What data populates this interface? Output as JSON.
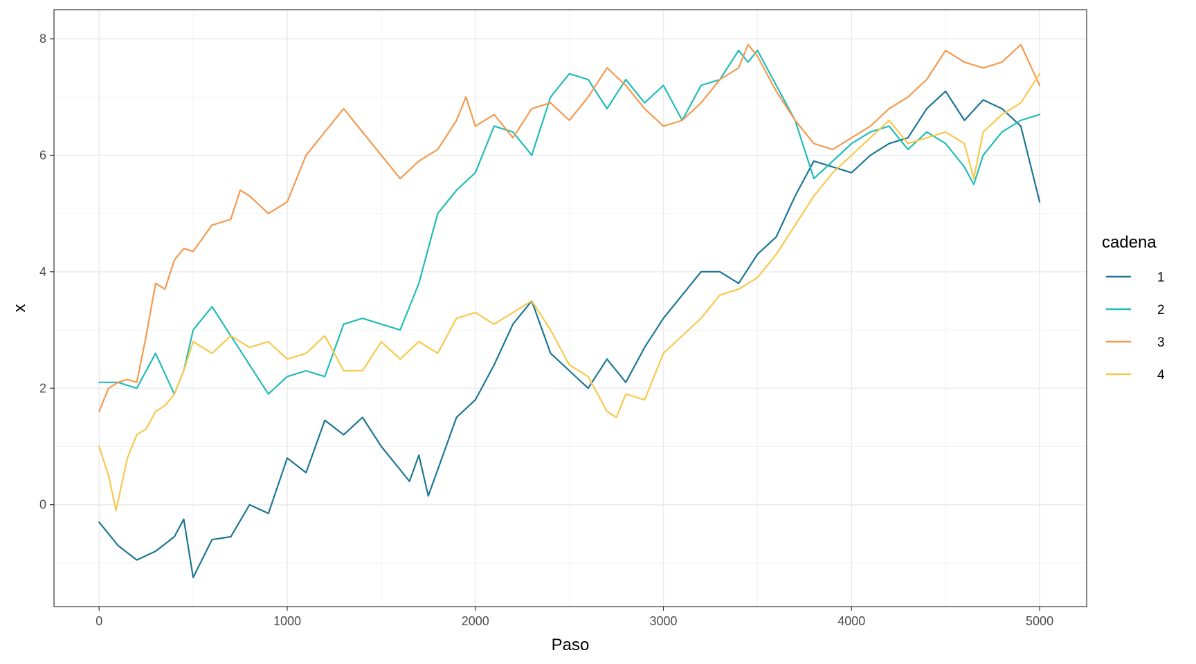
{
  "chart_data": {
    "type": "line",
    "title": "",
    "xlabel": "Paso",
    "ylabel": "x",
    "xlim": [
      -240,
      5250
    ],
    "ylim": [
      -1.75,
      8.5
    ],
    "x_ticks": [
      0,
      1000,
      2000,
      3000,
      4000,
      5000
    ],
    "x_tick_labels": [
      "0",
      "1000",
      "2000",
      "3000",
      "4000",
      "5000"
    ],
    "y_ticks": [
      0,
      2,
      4,
      6,
      8
    ],
    "y_tick_labels": [
      "0",
      "2",
      "4",
      "6",
      "8"
    ],
    "grid": true,
    "legend": {
      "title": "cadena",
      "position": "right"
    },
    "series": [
      {
        "name": "1",
        "color": "#1b7594",
        "x": [
          0,
          100,
          200,
          300,
          400,
          450,
          500,
          600,
          700,
          800,
          900,
          1000,
          1100,
          1200,
          1300,
          1400,
          1500,
          1600,
          1650,
          1700,
          1750,
          1800,
          1900,
          2000,
          2100,
          2200,
          2300,
          2400,
          2500,
          2600,
          2700,
          2800,
          2900,
          3000,
          3100,
          3200,
          3300,
          3400,
          3500,
          3600,
          3700,
          3800,
          3900,
          4000,
          4100,
          4200,
          4300,
          4400,
          4500,
          4600,
          4700,
          4800,
          4900,
          5000
        ],
        "y": [
          -0.3,
          -0.7,
          -0.95,
          -0.8,
          -0.55,
          -0.25,
          -1.25,
          -0.6,
          -0.55,
          0.0,
          -0.15,
          0.8,
          0.55,
          1.45,
          1.2,
          1.5,
          1.0,
          0.6,
          0.4,
          0.85,
          0.15,
          0.6,
          1.5,
          1.8,
          2.4,
          3.1,
          3.5,
          2.6,
          2.3,
          2.0,
          2.5,
          2.1,
          2.7,
          3.2,
          3.6,
          4.0,
          4.0,
          3.8,
          4.3,
          4.6,
          5.3,
          5.9,
          5.8,
          5.7,
          6.0,
          6.2,
          6.3,
          6.8,
          7.1,
          6.6,
          6.95,
          6.8,
          6.5,
          5.2
        ]
      },
      {
        "name": "2",
        "color": "#1fbcb8",
        "x": [
          0,
          100,
          200,
          300,
          400,
          450,
          500,
          600,
          700,
          800,
          900,
          1000,
          1100,
          1200,
          1300,
          1400,
          1500,
          1600,
          1700,
          1800,
          1900,
          2000,
          2100,
          2200,
          2300,
          2400,
          2500,
          2600,
          2700,
          2800,
          2900,
          3000,
          3100,
          3200,
          3300,
          3400,
          3450,
          3500,
          3600,
          3700,
          3800,
          3900,
          4000,
          4100,
          4200,
          4300,
          4400,
          4500,
          4600,
          4650,
          4700,
          4800,
          4900,
          5000
        ],
        "y": [
          2.1,
          2.1,
          2.0,
          2.6,
          1.9,
          2.3,
          3.0,
          3.4,
          2.9,
          2.4,
          1.9,
          2.2,
          2.3,
          2.2,
          3.1,
          3.2,
          3.1,
          3.0,
          3.8,
          5.0,
          5.4,
          5.7,
          6.5,
          6.4,
          6.0,
          7.0,
          7.4,
          7.3,
          6.8,
          7.3,
          6.9,
          7.2,
          6.6,
          7.2,
          7.3,
          7.8,
          7.6,
          7.8,
          7.2,
          6.6,
          5.6,
          5.9,
          6.2,
          6.4,
          6.5,
          6.1,
          6.4,
          6.2,
          5.8,
          5.5,
          6.0,
          6.4,
          6.6,
          6.7
        ]
      },
      {
        "name": "3",
        "color": "#f4994e",
        "x": [
          0,
          50,
          100,
          150,
          200,
          250,
          300,
          350,
          400,
          450,
          500,
          600,
          700,
          750,
          800,
          900,
          1000,
          1100,
          1200,
          1300,
          1400,
          1500,
          1550,
          1600,
          1700,
          1800,
          1900,
          1950,
          2000,
          2100,
          2200,
          2300,
          2400,
          2500,
          2600,
          2700,
          2800,
          2900,
          3000,
          3100,
          3200,
          3300,
          3400,
          3450,
          3500,
          3600,
          3700,
          3800,
          3900,
          4000,
          4100,
          4200,
          4300,
          4400,
          4500,
          4600,
          4700,
          4800,
          4900,
          5000
        ],
        "y": [
          1.6,
          2.0,
          2.1,
          2.15,
          2.1,
          2.9,
          3.8,
          3.7,
          4.2,
          4.4,
          4.35,
          4.8,
          4.9,
          5.4,
          5.3,
          5.0,
          5.2,
          6.0,
          6.4,
          6.8,
          6.4,
          6.0,
          5.8,
          5.6,
          5.9,
          6.1,
          6.6,
          7.0,
          6.5,
          6.7,
          6.3,
          6.8,
          6.9,
          6.6,
          7.0,
          7.5,
          7.2,
          6.8,
          6.5,
          6.6,
          6.9,
          7.3,
          7.5,
          7.9,
          7.7,
          7.1,
          6.6,
          6.2,
          6.1,
          6.3,
          6.5,
          6.8,
          7.0,
          7.3,
          7.8,
          7.6,
          7.5,
          7.6,
          7.9,
          7.2
        ]
      },
      {
        "name": "4",
        "color": "#f8c84b",
        "x": [
          0,
          50,
          90,
          150,
          200,
          250,
          300,
          350,
          400,
          450,
          500,
          600,
          700,
          800,
          900,
          1000,
          1100,
          1200,
          1300,
          1400,
          1500,
          1600,
          1700,
          1800,
          1900,
          2000,
          2100,
          2200,
          2300,
          2400,
          2500,
          2600,
          2700,
          2750,
          2800,
          2900,
          3000,
          3100,
          3200,
          3300,
          3400,
          3500,
          3600,
          3700,
          3800,
          3900,
          4000,
          4100,
          4200,
          4300,
          4400,
          4500,
          4600,
          4650,
          4700,
          4800,
          4900,
          5000
        ],
        "y": [
          1.0,
          0.5,
          -0.1,
          0.8,
          1.2,
          1.3,
          1.6,
          1.7,
          1.9,
          2.3,
          2.8,
          2.6,
          2.9,
          2.7,
          2.8,
          2.5,
          2.6,
          2.9,
          2.3,
          2.3,
          2.8,
          2.5,
          2.8,
          2.6,
          3.2,
          3.3,
          3.1,
          3.3,
          3.5,
          3.0,
          2.4,
          2.2,
          1.6,
          1.5,
          1.9,
          1.8,
          2.6,
          2.9,
          3.2,
          3.6,
          3.7,
          3.9,
          4.3,
          4.8,
          5.3,
          5.7,
          6.0,
          6.3,
          6.6,
          6.2,
          6.3,
          6.4,
          6.2,
          5.6,
          6.4,
          6.7,
          6.9,
          7.4
        ]
      }
    ]
  }
}
